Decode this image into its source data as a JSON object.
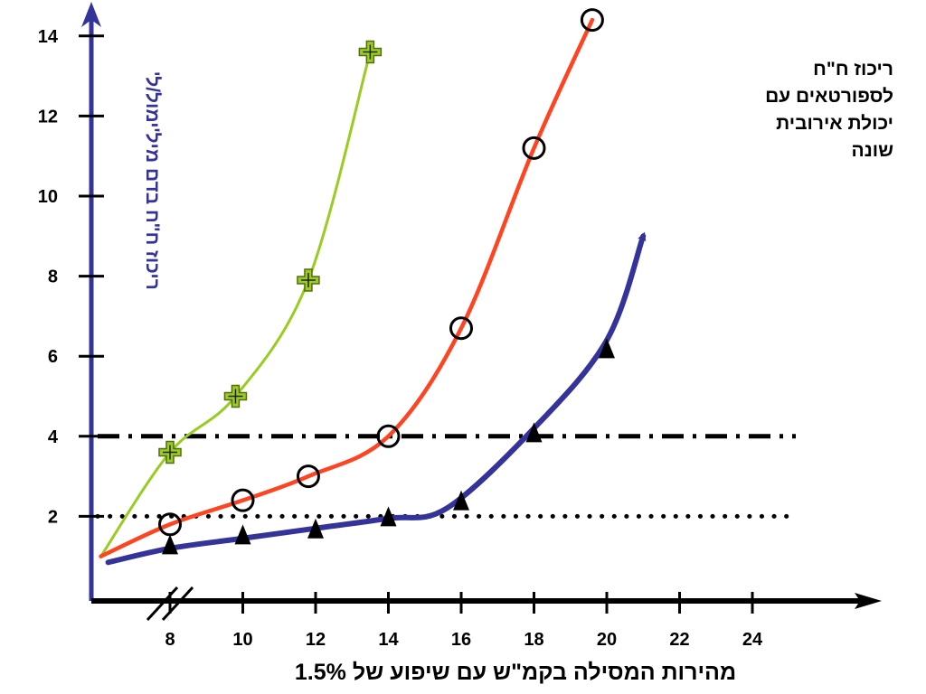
{
  "chart_data": {
    "type": "line",
    "title": "",
    "xlabel": "מהירות המסילה בקמ\"ש עם שיפוע של 1.5%",
    "ylabel": "ריכוז ח\"ח בדם מיל'ימול/ל'",
    "xlim": [
      6,
      24
    ],
    "ylim": [
      0,
      14
    ],
    "x_axis_break": true,
    "x_ticks": [
      8,
      10,
      12,
      14,
      16,
      18,
      20,
      22,
      24
    ],
    "y_ticks": [
      2,
      4,
      6,
      8,
      10,
      12,
      14
    ],
    "grid": false,
    "legend_position": "top-right",
    "annotation_lines": [
      "ריכוז ח\"ח",
      "לספורטאים עם",
      "יכולת אירובית",
      "שונה"
    ],
    "reference_lines": [
      {
        "y": 4,
        "style": "dash-dot",
        "color": "#000000"
      },
      {
        "y": 2,
        "style": "dotted",
        "color": "#000000"
      }
    ],
    "series": [
      {
        "color": "#99cc22",
        "marker": "cross",
        "curve": [
          [
            6.1,
            1.0
          ],
          [
            8,
            3.6
          ],
          [
            9.8,
            5.0
          ],
          [
            11.8,
            7.9
          ],
          [
            13.5,
            13.6
          ]
        ],
        "points": [
          [
            8,
            3.6
          ],
          [
            9.8,
            5.0
          ],
          [
            11.8,
            7.9
          ],
          [
            13.5,
            13.6
          ]
        ]
      },
      {
        "color": "#ff4422",
        "marker": "circle",
        "curve": [
          [
            6.1,
            1.0
          ],
          [
            8,
            1.8
          ],
          [
            10,
            2.4
          ],
          [
            11.8,
            3.0
          ],
          [
            14,
            4.0
          ],
          [
            16,
            6.7
          ],
          [
            18,
            11.2
          ],
          [
            19.6,
            14.4
          ]
        ],
        "points": [
          [
            8,
            1.8
          ],
          [
            10,
            2.4
          ],
          [
            11.8,
            3.0
          ],
          [
            14,
            4.0
          ],
          [
            16,
            6.7
          ],
          [
            18,
            11.2
          ],
          [
            19.6,
            14.4
          ]
        ]
      },
      {
        "color": "#33339a",
        "marker": "triangle",
        "curve": [
          [
            6.3,
            0.85
          ],
          [
            8,
            1.2
          ],
          [
            10,
            1.45
          ],
          [
            12,
            1.7
          ],
          [
            14,
            1.95
          ],
          [
            15.6,
            2.2
          ],
          [
            18,
            4.2
          ],
          [
            20,
            6.4
          ],
          [
            21,
            9.0
          ]
        ],
        "points": [
          [
            8,
            1.3
          ],
          [
            10,
            1.55
          ],
          [
            12,
            1.7
          ],
          [
            14,
            2.0
          ],
          [
            16,
            2.4
          ],
          [
            18,
            4.1
          ],
          [
            20,
            6.2
          ]
        ]
      }
    ]
  }
}
